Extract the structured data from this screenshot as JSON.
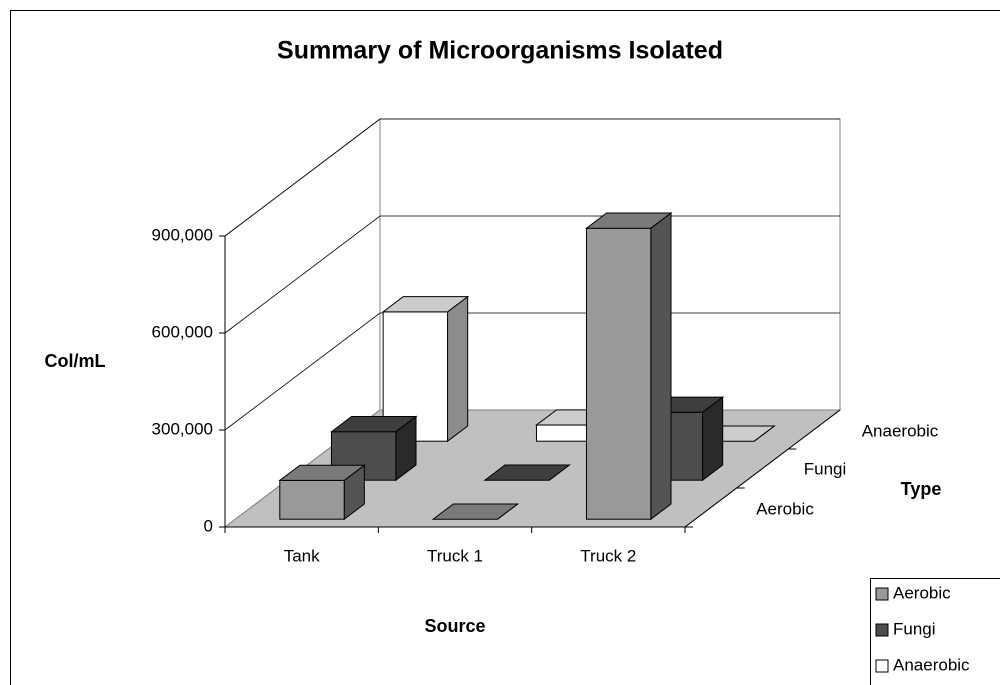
{
  "chart_data": {
    "type": "bar3d",
    "title": "Summary of Microorganisms Isolated",
    "x_label": "Source",
    "y_label": "Col/mL",
    "z_label": "Type",
    "categories": [
      "Tank",
      "Truck 1",
      "Truck 2"
    ],
    "series": [
      {
        "name": "Aerobic",
        "color": "#999999",
        "values": [
          120000,
          0,
          900000
        ]
      },
      {
        "name": "Fungi",
        "color": "#4d4d4d",
        "values": [
          150000,
          0,
          210000
        ]
      },
      {
        "name": "Anaerobic",
        "color": "#ffffff",
        "values": [
          400000,
          50000,
          0
        ]
      }
    ],
    "ylim": [
      0,
      900000
    ],
    "yticks": [
      0,
      {
        "value": 300000,
        "label": "300,000"
      },
      {
        "value": 600000,
        "label": "600,000"
      },
      {
        "value": 900000,
        "label": "900,000"
      }
    ],
    "grid": true,
    "legend": "bottom-right"
  }
}
